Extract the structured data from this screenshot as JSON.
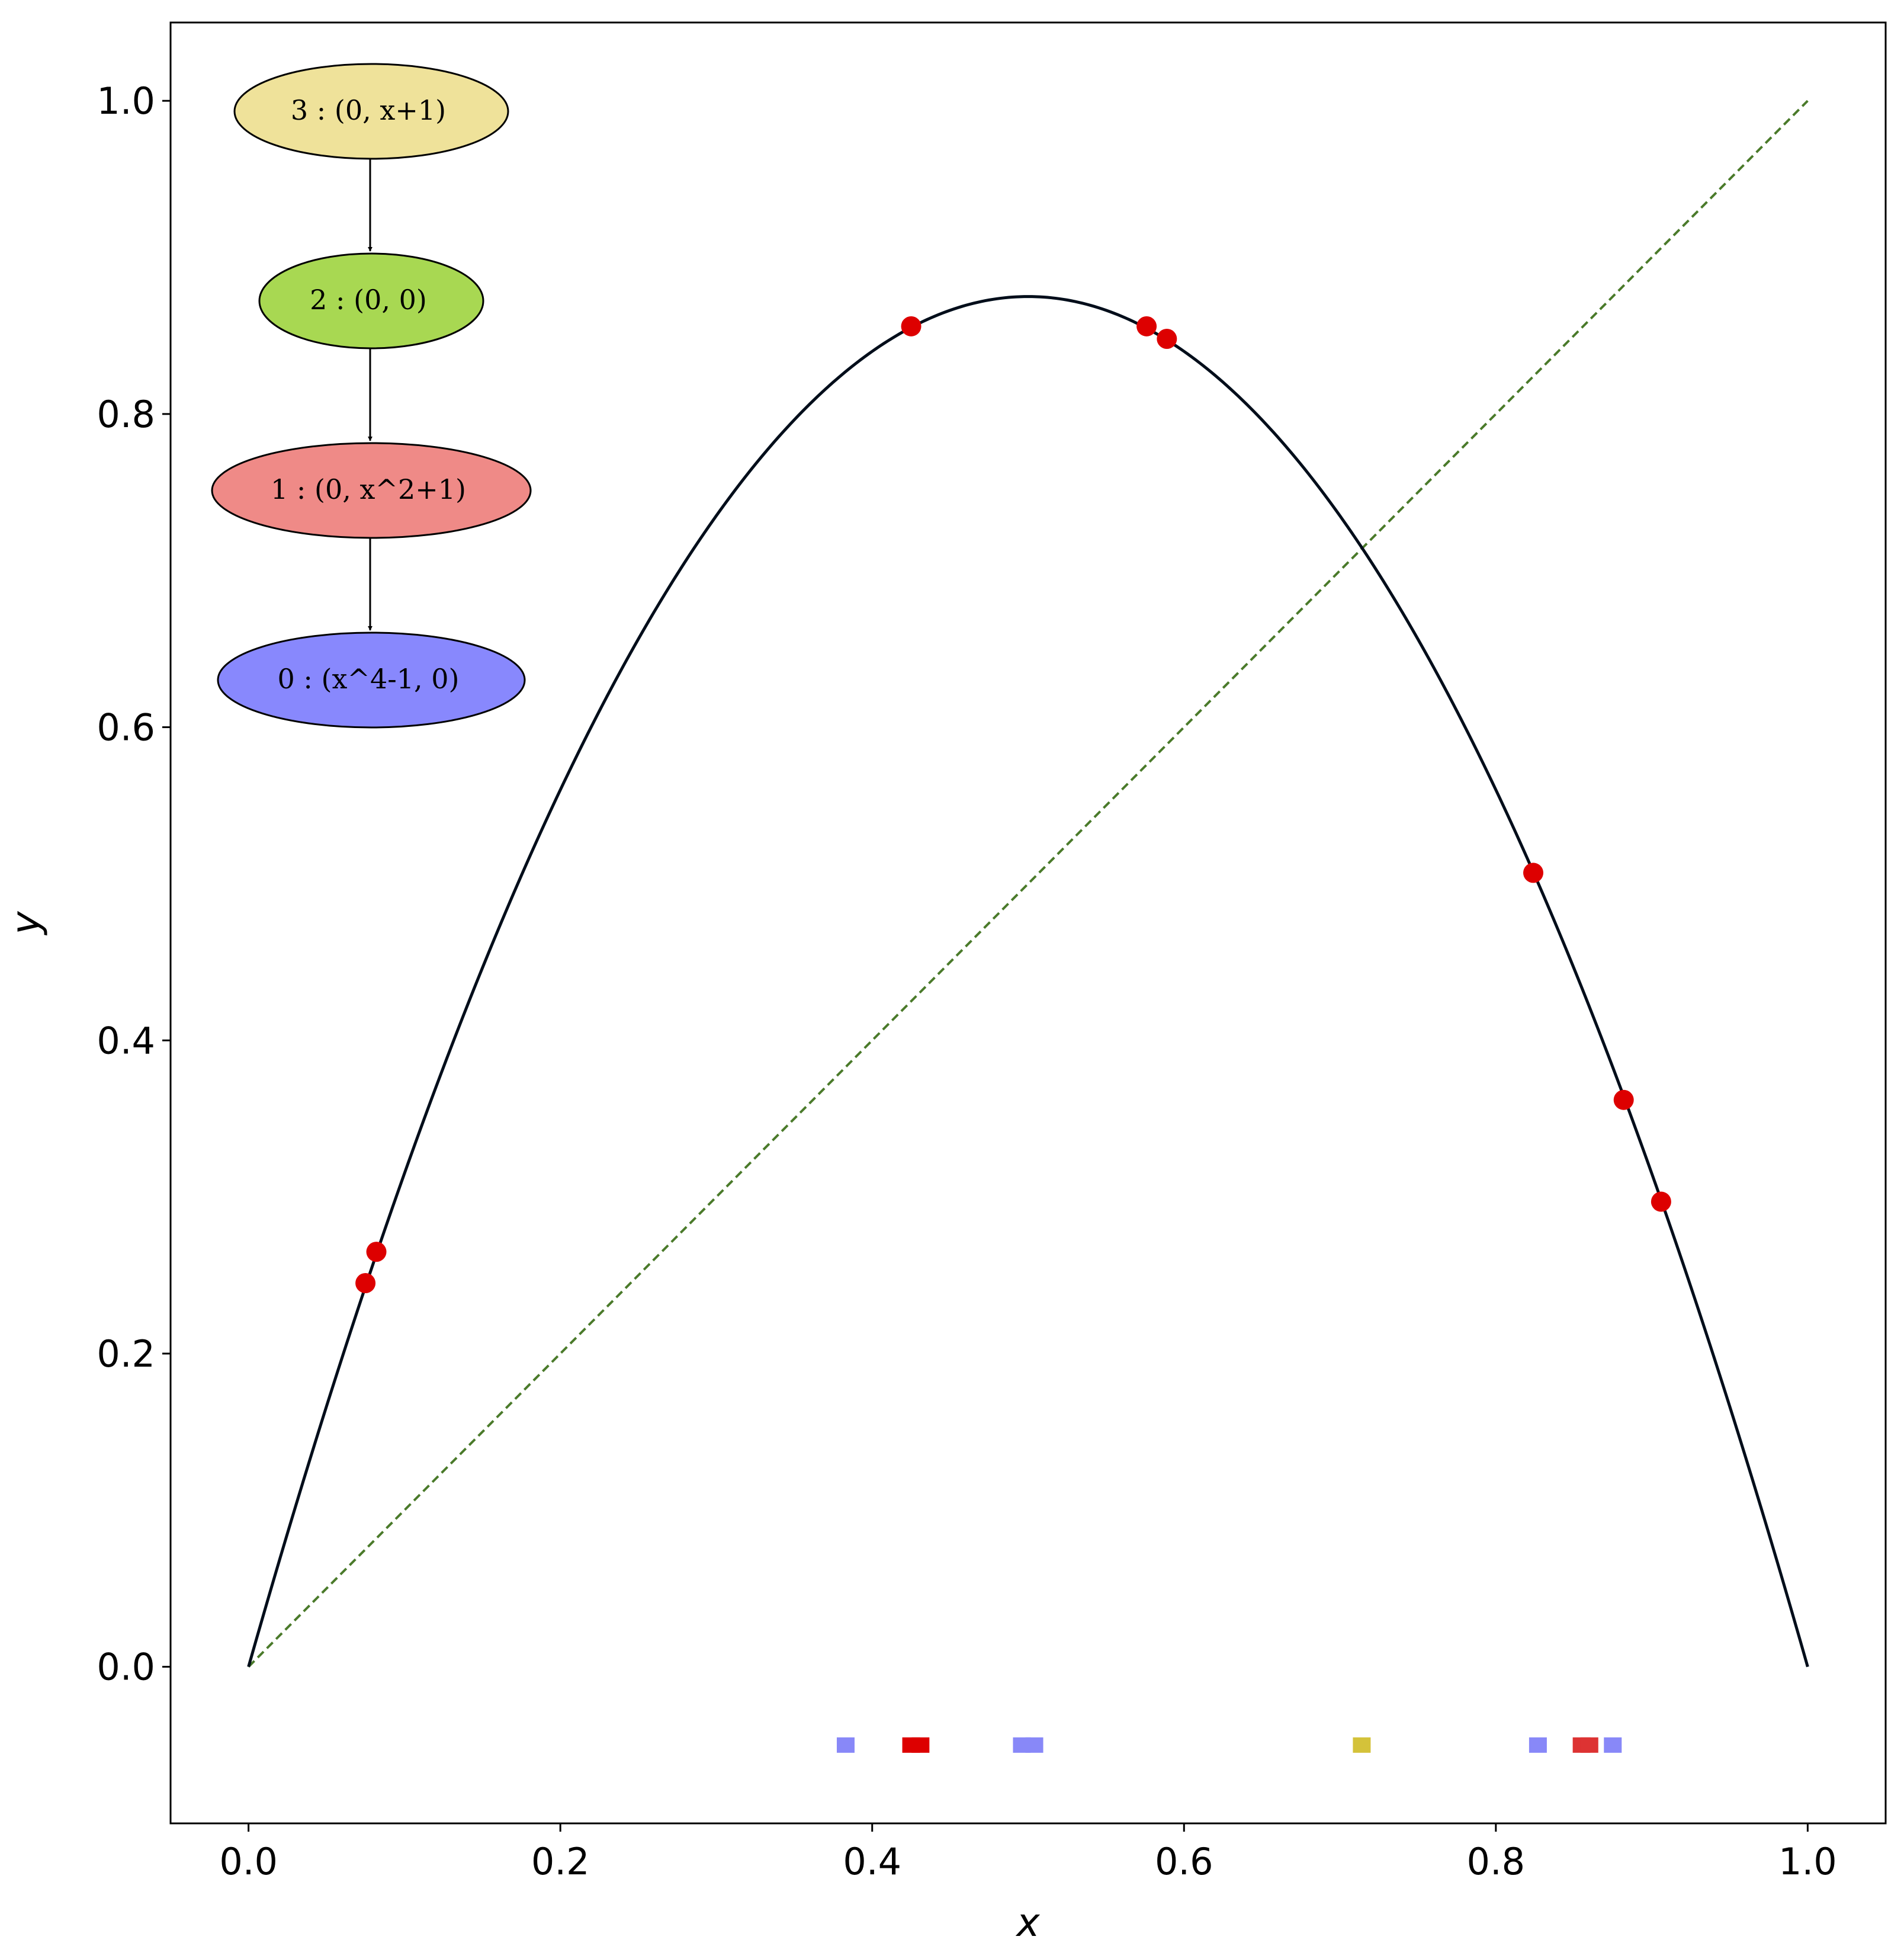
{
  "chart_data": {
    "type": "line",
    "xlabel": "x",
    "ylabel": "y",
    "xlim": [
      -0.05,
      1.05
    ],
    "ylim": [
      -0.1,
      1.05
    ],
    "xticks": [
      "0.0",
      "0.2",
      "0.4",
      "0.6",
      "0.8",
      "1.0"
    ],
    "yticks": [
      "0.0",
      "0.2",
      "0.4",
      "0.6",
      "0.8",
      "1.0"
    ],
    "grid": false,
    "series": [
      {
        "kind": "curve",
        "function": "3.5*x*(1-x)",
        "x_range": [
          0,
          1
        ],
        "color": "#000d1a"
      },
      {
        "kind": "identity-line",
        "from": [
          0,
          0
        ],
        "to": [
          1,
          1
        ],
        "style": "dashed",
        "color": "#4a7a2a"
      }
    ],
    "points": {
      "color": "#dd0000",
      "values": [
        [
          0.075,
          0.245
        ],
        [
          0.082,
          0.265
        ],
        [
          0.425,
          0.856
        ],
        [
          0.576,
          0.856
        ],
        [
          0.589,
          0.848
        ],
        [
          0.824,
          0.507
        ],
        [
          0.882,
          0.362
        ],
        [
          0.906,
          0.297
        ]
      ]
    },
    "strip": {
      "y": -0.05,
      "markers": [
        {
          "x": 0.383,
          "color": "#8888f8"
        },
        {
          "x": 0.425,
          "color": "#dd0000"
        },
        {
          "x": 0.431,
          "color": "#dd0000"
        },
        {
          "x": 0.496,
          "color": "#8888f8"
        },
        {
          "x": 0.504,
          "color": "#8888f8"
        },
        {
          "x": 0.714,
          "color": "#d4c23a"
        },
        {
          "x": 0.827,
          "color": "#8888f8"
        },
        {
          "x": 0.855,
          "color": "#dd3333"
        },
        {
          "x": 0.86,
          "color": "#dd3333"
        },
        {
          "x": 0.875,
          "color": "#8888f8"
        }
      ]
    }
  },
  "graph": {
    "nodes": [
      {
        "label": "3 : (0, x+1)",
        "color": "#efe29a"
      },
      {
        "label": "2 : (0, 0)",
        "color": "#a8d852"
      },
      {
        "label": "1 : (0, x^2+1)",
        "color": "#ef8a87"
      },
      {
        "label": "0 : (x^4-1, 0)",
        "color": "#8888fd"
      }
    ]
  }
}
